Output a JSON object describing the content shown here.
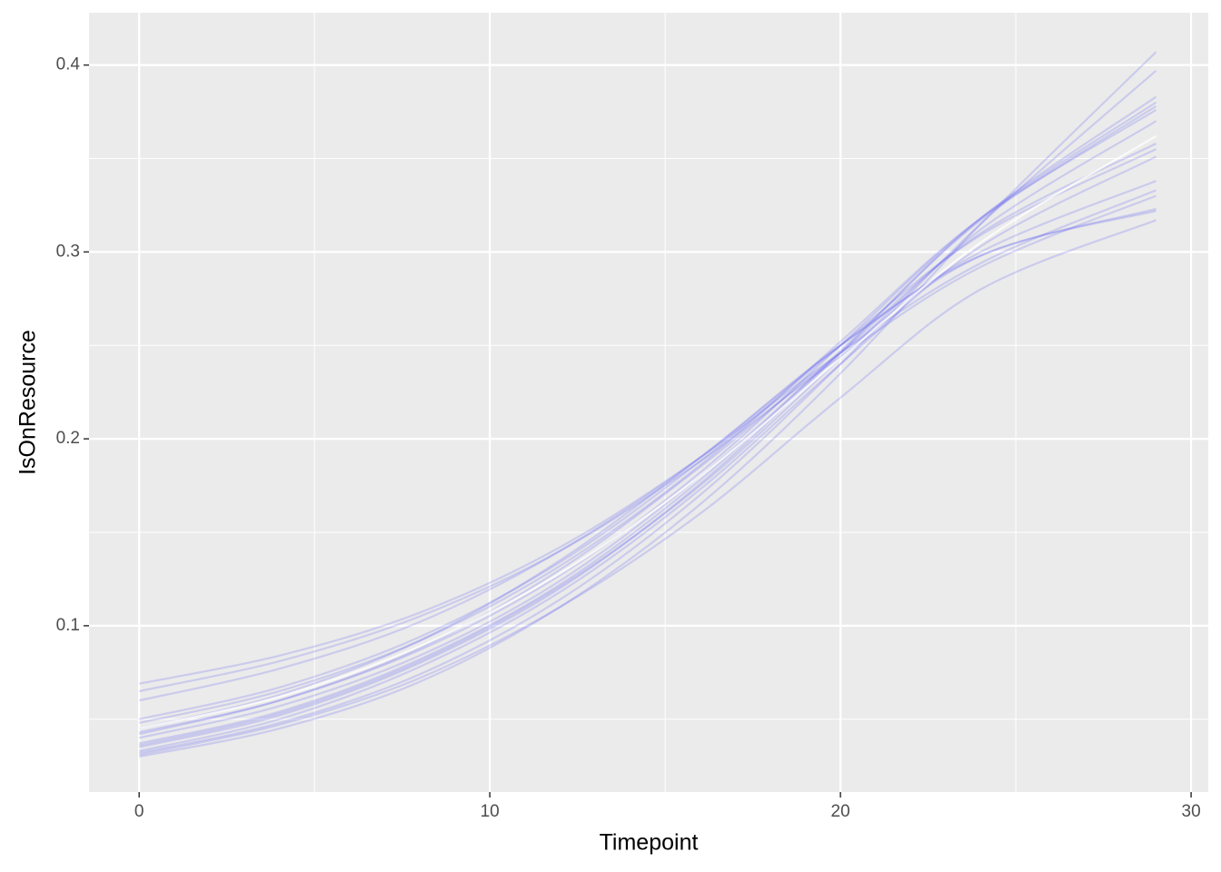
{
  "chart_data": {
    "type": "line",
    "x_label": "Timepoint",
    "y_label": "IsOnResource",
    "x": [
      0,
      4,
      8,
      12,
      16,
      20,
      24,
      29
    ],
    "series": [
      {
        "color": "#5a5af0",
        "alpha": 0.22,
        "values": [
          0.03,
          0.045,
          0.07,
          0.11,
          0.165,
          0.235,
          0.315,
          0.407
        ]
      },
      {
        "color": "#5a5af0",
        "alpha": 0.22,
        "values": [
          0.032,
          0.048,
          0.074,
          0.114,
          0.17,
          0.24,
          0.315,
          0.397
        ]
      },
      {
        "color": "#5a5af0",
        "alpha": 0.22,
        "values": [
          0.035,
          0.052,
          0.08,
          0.12,
          0.176,
          0.246,
          0.318,
          0.383
        ]
      },
      {
        "color": "#5a5af0",
        "alpha": 0.22,
        "values": [
          0.043,
          0.06,
          0.087,
          0.127,
          0.182,
          0.25,
          0.318,
          0.38
        ]
      },
      {
        "color": "#5a5af0",
        "alpha": 0.22,
        "values": [
          0.037,
          0.054,
          0.082,
          0.122,
          0.178,
          0.247,
          0.317,
          0.378
        ]
      },
      {
        "color": "#5a5af0",
        "alpha": 0.22,
        "values": [
          0.048,
          0.065,
          0.092,
          0.132,
          0.186,
          0.252,
          0.318,
          0.376
        ]
      },
      {
        "color": "#5a5af0",
        "alpha": 0.22,
        "values": [
          0.04,
          0.057,
          0.084,
          0.124,
          0.18,
          0.246,
          0.31,
          0.358
        ]
      },
      {
        "color": "#5a5af0",
        "alpha": 0.22,
        "values": [
          0.05,
          0.067,
          0.094,
          0.134,
          0.188,
          0.25,
          0.309,
          0.355
        ]
      },
      {
        "color": "#5a5af0",
        "alpha": 0.22,
        "values": [
          0.033,
          0.05,
          0.078,
          0.118,
          0.173,
          0.24,
          0.303,
          0.351
        ]
      },
      {
        "color": "#5a5af0",
        "alpha": 0.22,
        "values": [
          0.06,
          0.077,
          0.102,
          0.14,
          0.19,
          0.25,
          0.3,
          0.338
        ]
      },
      {
        "color": "#5a5af0",
        "alpha": 0.22,
        "values": [
          0.069,
          0.084,
          0.107,
          0.142,
          0.19,
          0.246,
          0.294,
          0.333
        ]
      },
      {
        "color": "#5a5af0",
        "alpha": 0.22,
        "values": [
          0.065,
          0.081,
          0.105,
          0.14,
          0.188,
          0.244,
          0.292,
          0.33
        ]
      },
      {
        "color": "#5a5af0",
        "alpha": 0.22,
        "values": [
          0.045,
          0.063,
          0.092,
          0.135,
          0.19,
          0.25,
          0.298,
          0.323
        ]
      },
      {
        "color": "#5a5af0",
        "alpha": 0.22,
        "values": [
          0.031,
          0.047,
          0.072,
          0.11,
          0.16,
          0.222,
          0.28,
          0.317
        ]
      },
      {
        "color": "#5a5af0",
        "alpha": 0.22,
        "values": [
          0.042,
          0.06,
          0.088,
          0.13,
          0.185,
          0.246,
          0.298,
          0.322
        ]
      },
      {
        "color": "#5a5af0",
        "alpha": 0.22,
        "values": [
          0.036,
          0.053,
          0.081,
          0.121,
          0.175,
          0.243,
          0.312,
          0.37
        ]
      },
      {
        "color": "#ffffff",
        "alpha": 0.75,
        "values": [
          0.045,
          0.062,
          0.089,
          0.128,
          0.18,
          0.243,
          0.305,
          0.362
        ]
      }
    ],
    "xlim": [
      -1.43,
      30.49
    ],
    "ylim": [
      0.011,
      0.428
    ],
    "xticks": [
      0,
      10,
      20,
      30
    ],
    "yticks": [
      0.1,
      0.2,
      0.3,
      0.4
    ],
    "x_minor_ticks": [
      5,
      15,
      25
    ],
    "y_minor_ticks": [
      0.05,
      0.15,
      0.25,
      0.35
    ],
    "grid": true,
    "panel_color": "#ebebeb"
  }
}
